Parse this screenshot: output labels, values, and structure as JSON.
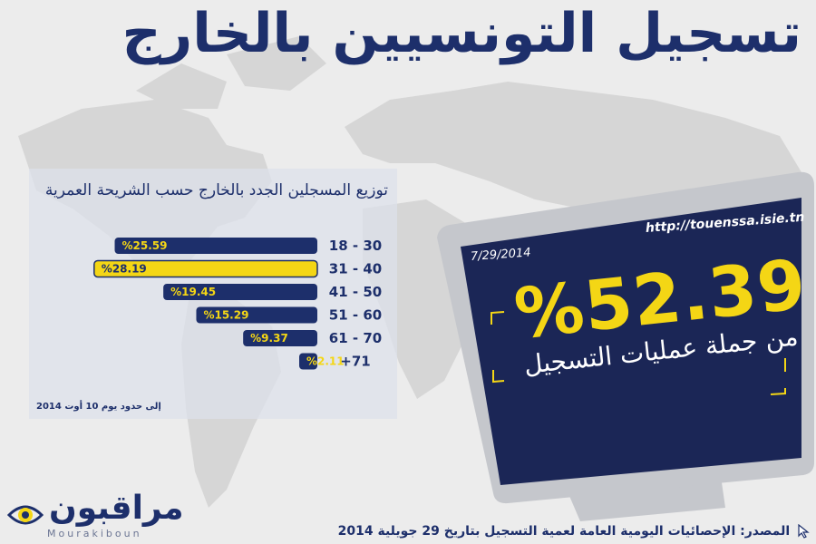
{
  "title": "تسجيل التونسيين بالخارج",
  "panel": {
    "title": "توزيع المسجلين الجدد بالخارج حسب الشريحة العمرية",
    "note": "إلى حدود يوم 10 أوت 2014"
  },
  "chart_data": {
    "type": "bar",
    "orientation": "horizontal",
    "categories": [
      "18 - 30",
      "31 - 40",
      "41 - 50",
      "51 - 60",
      "61 - 70",
      "+71"
    ],
    "value_labels": [
      "%25.59",
      "%28.19",
      "%19.45",
      "%15.29",
      "%9.37",
      "%2.11"
    ],
    "values": [
      25.59,
      28.19,
      19.45,
      15.29,
      9.37,
      2.11
    ],
    "highlight_index": 1,
    "colors": {
      "bar": "#1d2f6b",
      "highlight": "#f4d615",
      "label": "#f4d615",
      "highlight_label": "#1d2f6b"
    }
  },
  "monitor": {
    "url": "http://touenssa.isie.tn",
    "date": "7/29/2014",
    "big_value": "%52.39",
    "subtitle": "من جملة عمليات التسجيل"
  },
  "logo": {
    "arabic": "مراقبون",
    "latin": "Mourakiboun",
    "icon": "eye-icon"
  },
  "source": {
    "prefix": "المصدر:",
    "text": "الإحصائيات اليومية العامة لعمية التسجيل بتاريخ 29 جويلية 2014",
    "icon": "cursor-icon"
  },
  "colors": {
    "navy": "#1d2f6b",
    "yellow": "#f4d615",
    "screen": "#1b2656",
    "frame": "#c5c7cc"
  }
}
